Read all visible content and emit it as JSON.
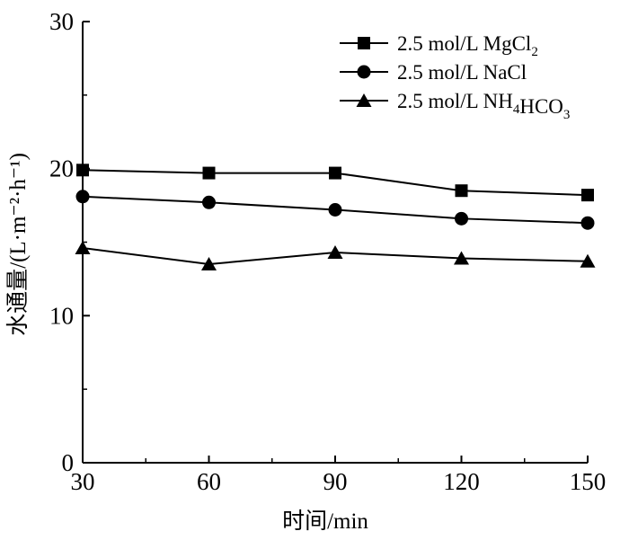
{
  "chart_data": {
    "type": "line",
    "title": "",
    "xlabel": "时间/min",
    "ylabel": "水通量/(L·m⁻²·h⁻¹)",
    "x": [
      30,
      60,
      90,
      120,
      150
    ],
    "xticks": [
      "30",
      "60",
      "90",
      "120",
      "150"
    ],
    "yticks": [
      "0",
      "10",
      "20",
      "30"
    ],
    "xlim": [
      30,
      150
    ],
    "ylim": [
      0,
      30
    ],
    "grid": false,
    "legend_position": "top-right",
    "series": [
      {
        "name": "2.5 mol/L MgCl₂",
        "marker": "square",
        "values": [
          19.9,
          19.7,
          19.7,
          18.5,
          18.2
        ]
      },
      {
        "name": "2.5 mol/L NaCl",
        "marker": "circle",
        "values": [
          18.1,
          17.7,
          17.2,
          16.6,
          16.3
        ]
      },
      {
        "name": "2.5 mol/L NH₄HCO₃",
        "marker": "triangle",
        "values": [
          14.6,
          13.5,
          14.3,
          13.9,
          13.7
        ]
      }
    ]
  }
}
